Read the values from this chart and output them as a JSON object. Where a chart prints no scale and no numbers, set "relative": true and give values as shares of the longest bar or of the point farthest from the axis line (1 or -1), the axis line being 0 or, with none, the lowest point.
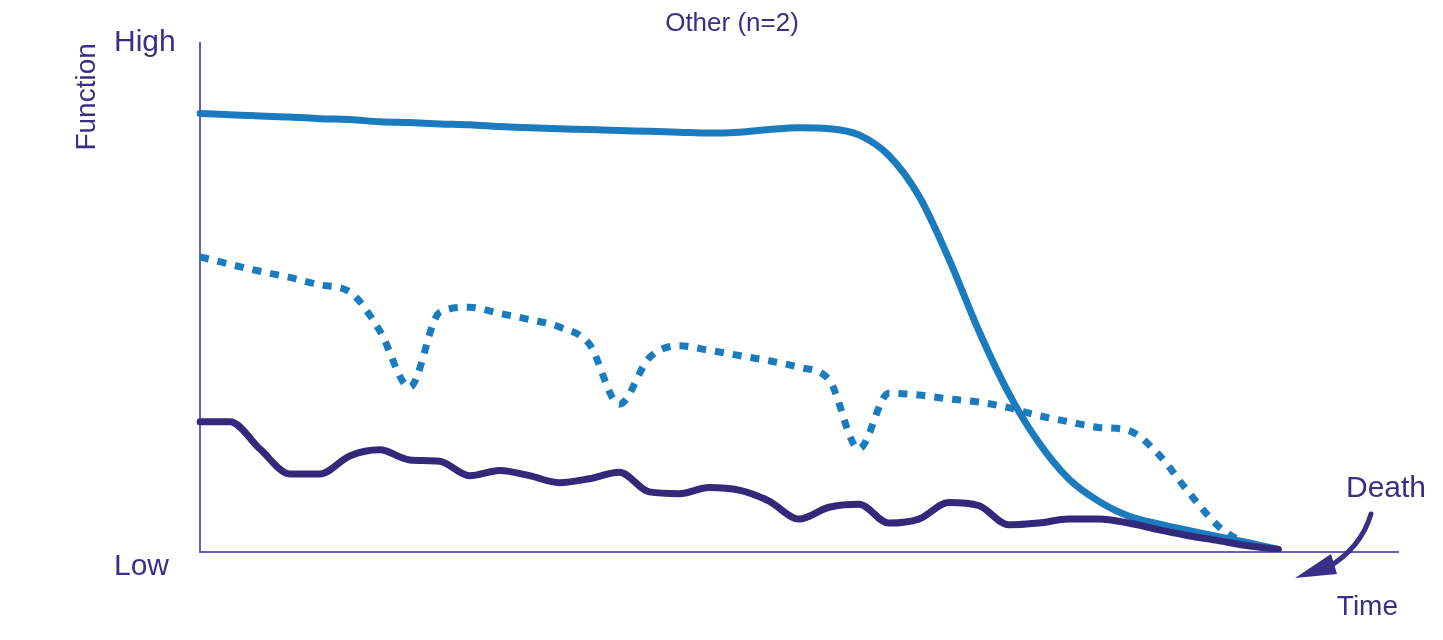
{
  "chart_data": {
    "type": "line",
    "title": "Other (n=2)",
    "xlabel": "Time",
    "ylabel": "Function",
    "relative": true,
    "categories": [
      null,
      null,
      null,
      null,
      null,
      null,
      null,
      null,
      null,
      null,
      null,
      null,
      null,
      null,
      null,
      null,
      null,
      null,
      null,
      null,
      null,
      null,
      null,
      null,
      null,
      null,
      null,
      null,
      null,
      null,
      null,
      null,
      null,
      null,
      null,
      null,
      null,
      null,
      null,
      null,
      null
    ],
    "series": [
      {
        "color": "#33287a",
        "line_style": "solid",
        "values": [
          0.297,
          0.297,
          0.235,
          0.178,
          0.178,
          0.219,
          0.233,
          0.21,
          0.207,
          0.174,
          0.186,
          0.174,
          0.158,
          0.167,
          0.182,
          0.137,
          0.133,
          0.147,
          0.141,
          0.116,
          0.075,
          0.102,
          0.109,
          0.066,
          0.075,
          0.113,
          0.106,
          0.062,
          0.066,
          0.075,
          0.075,
          0.066,
          0.051,
          0.037,
          0.026,
          0.014,
          0.006,
          null,
          null,
          null,
          null
        ]
      },
      {
        "color": "#1b7bbf",
        "line_style": "dotted",
        "values": [
          0.673,
          0.656,
          0.64,
          0.626,
          0.609,
          0.593,
          0.505,
          0.376,
          0.546,
          0.558,
          0.544,
          0.53,
          0.513,
          0.474,
          0.337,
          0.443,
          0.47,
          0.46,
          0.448,
          0.436,
          0.421,
          0.393,
          0.235,
          0.362,
          0.358,
          0.349,
          0.342,
          0.329,
          0.311,
          0.297,
          0.284,
          0.277,
          0.223,
          0.137,
          0.059,
          0.014,
          null,
          null,
          null,
          null,
          null
        ]
      },
      {
        "color": "#1b7bbf",
        "line_style": "solid",
        "values": [
          1,
          0.997,
          0.994,
          0.992,
          0.988,
          0.986,
          0.981,
          0.979,
          0.976,
          0.974,
          0.97,
          0.967,
          0.965,
          0.963,
          0.961,
          0.959,
          0.957,
          0.955,
          0.957,
          0.963,
          0.967,
          0.965,
          0.951,
          0.904,
          0.812,
          0.669,
          0.505,
          0.362,
          0.25,
          0.167,
          0.116,
          0.082,
          0.064,
          0.049,
          0.035,
          0.021,
          0.006,
          null,
          null,
          null,
          null
        ]
      }
    ],
    "grid": false,
    "legend": false,
    "marker": "none",
    "annotations": [
      "High",
      "Low",
      "Death"
    ]
  }
}
